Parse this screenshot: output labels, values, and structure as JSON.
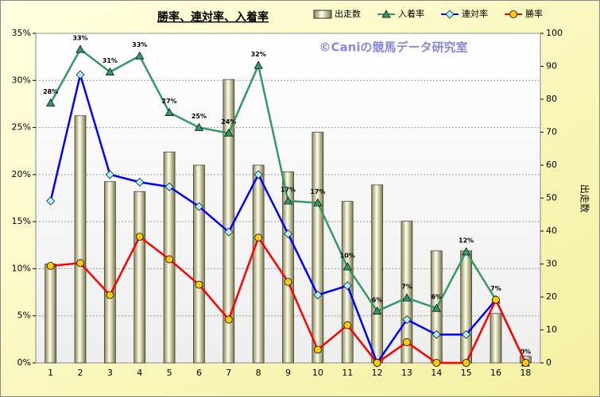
{
  "chart_data": {
    "type": "bar_line",
    "title": "勝率、連対率、入着率",
    "annotation": "©Caniの競馬データ研究室",
    "y2_label": "出走数",
    "categories": [
      "1",
      "2",
      "3",
      "4",
      "5",
      "6",
      "7",
      "8",
      "9",
      "10",
      "11",
      "12",
      "13",
      "14",
      "15",
      "16",
      "18"
    ],
    "ylim": [
      0,
      35
    ],
    "yticks": [
      {
        "value": 0,
        "label": "0%"
      },
      {
        "value": 5,
        "label": "5%"
      },
      {
        "value": 10,
        "label": "10%"
      },
      {
        "value": 15,
        "label": "15%"
      },
      {
        "value": 20,
        "label": "20%"
      },
      {
        "value": 25,
        "label": "25%"
      },
      {
        "value": 30,
        "label": "30%"
      },
      {
        "value": 35,
        "label": "35%"
      }
    ],
    "y2lim": [
      0,
      100
    ],
    "y2ticks": [
      0,
      10,
      20,
      30,
      40,
      50,
      60,
      70,
      80,
      90,
      100
    ],
    "grid": true,
    "series": [
      {
        "name": "出走数",
        "kind": "bar",
        "axis": "y2",
        "color": "#e8e4b0",
        "values": [
          30,
          75,
          55,
          52,
          64,
          60,
          86,
          60,
          58,
          70,
          49,
          54,
          43,
          34,
          34,
          15,
          2
        ]
      },
      {
        "name": "入着率",
        "kind": "line",
        "marker": "triangle",
        "color": "#339966",
        "values": [
          27.6,
          33.3,
          30.9,
          32.6,
          26.6,
          25,
          24.4,
          31.6,
          17.2,
          17,
          10.2,
          5.5,
          6.9,
          5.8,
          11.8,
          6.7,
          0
        ],
        "value_labels": [
          "28%",
          "33%",
          "31%",
          "33%",
          "27%",
          "25%",
          "24%",
          "32%",
          "17%",
          "17%",
          "10%",
          "6%",
          "7%",
          "6%",
          "12%",
          "7%",
          "0%"
        ]
      },
      {
        "name": "連対率",
        "kind": "line",
        "marker": "diamond",
        "color": "#0000ff",
        "values": [
          17.2,
          30.6,
          20,
          19.2,
          18.7,
          16.6,
          13.9,
          20,
          13.7,
          7.2,
          8.2,
          0,
          4.6,
          3,
          3,
          6.7,
          null
        ]
      },
      {
        "name": "勝率",
        "kind": "line",
        "marker": "circle",
        "color": "#ff0000",
        "values": [
          10.3,
          10.6,
          7.2,
          13.4,
          11,
          8.3,
          4.6,
          13.3,
          8.6,
          1.4,
          4,
          0,
          2.2,
          0,
          0,
          6.7,
          0
        ]
      }
    ]
  }
}
